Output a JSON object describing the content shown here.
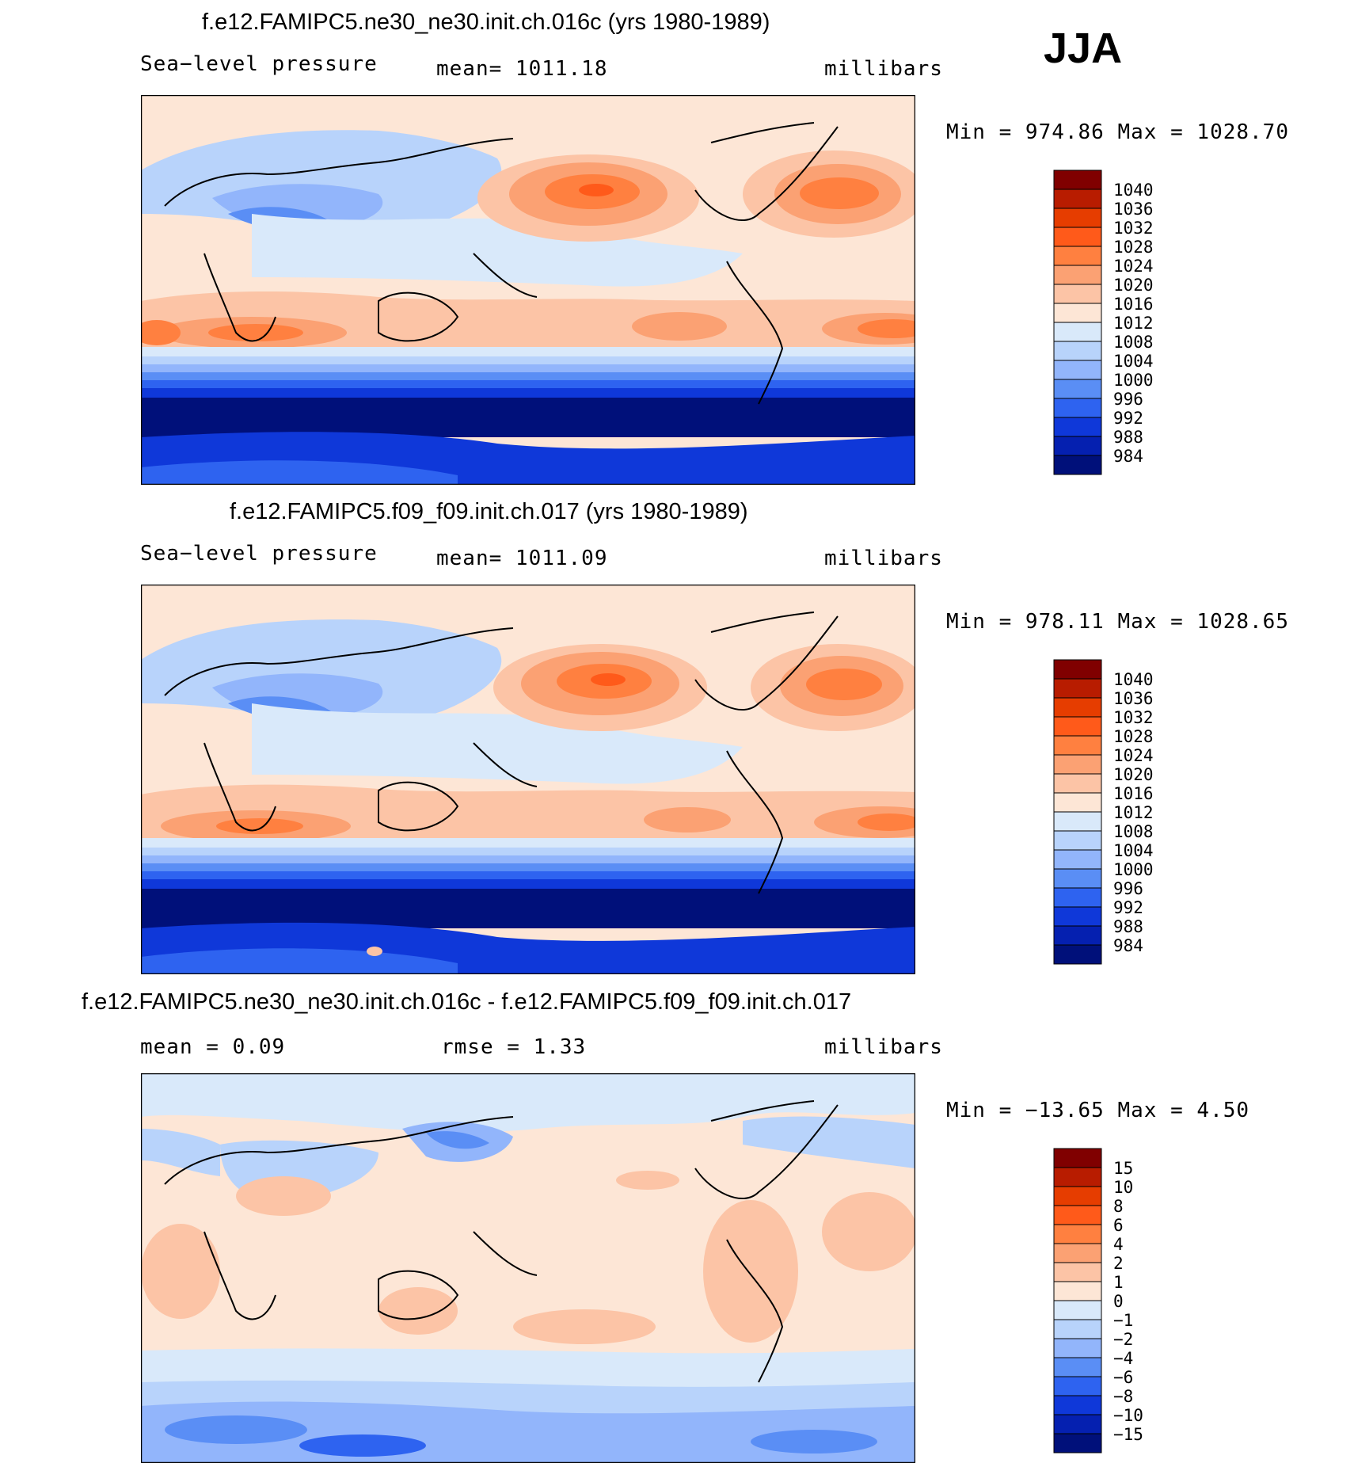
{
  "season": "JJA",
  "panels": [
    {
      "title": "f.e12.FAMIPC5.ne30_ne30.init.ch.016c (yrs 1980-1989)",
      "variable": "Sea−level pressure",
      "mean": "mean=  1011.18",
      "units": "millibars",
      "minmax": "Min  =  974.86  Max  =  1028.70",
      "legend": [
        "1040",
        "1036",
        "1032",
        "1028",
        "1024",
        "1020",
        "1016",
        "1012",
        "1008",
        "1004",
        "1000",
        "996",
        "992",
        "988",
        "984"
      ]
    },
    {
      "title": "f.e12.FAMIPC5.f09_f09.init.ch.017 (yrs 1980-1989)",
      "variable": "Sea−level pressure",
      "mean": "mean=  1011.09",
      "units": "millibars",
      "minmax": "Min  =  978.11  Max  =  1028.65",
      "legend": [
        "1040",
        "1036",
        "1032",
        "1028",
        "1024",
        "1020",
        "1016",
        "1012",
        "1008",
        "1004",
        "1000",
        "996",
        "992",
        "988",
        "984"
      ]
    },
    {
      "title": "f.e12.FAMIPC5.ne30_ne30.init.ch.016c - f.e12.FAMIPC5.f09_f09.init.ch.017",
      "mean": "mean  =     0.09",
      "rmse": "rmse  =     1.33",
      "units": "millibars",
      "minmax": "Min  =  −13.65  Max  =     4.50",
      "legend": [
        "15",
        "10",
        "8",
        "6",
        "4",
        "2",
        "1",
        "0",
        "−1",
        "−2",
        "−4",
        "−6",
        "−8",
        "−10",
        "−15"
      ]
    }
  ],
  "colors": {
    "ramp": [
      "#800000",
      "#b81c00",
      "#e63d00",
      "#ff5a1a",
      "#ff8040",
      "#fba173",
      "#fcc4a6",
      "#fde6d6",
      "#d9e9fa",
      "#b8d3fb",
      "#92b5fb",
      "#5a8ef5",
      "#2e63f0",
      "#0f38d9",
      "#0520b0",
      "#00107a"
    ]
  }
}
